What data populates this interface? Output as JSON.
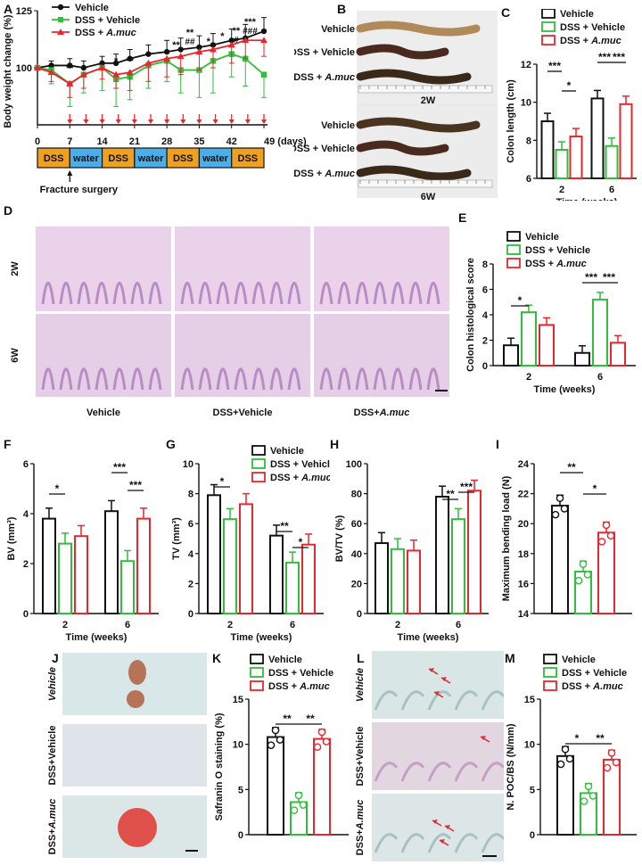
{
  "panels": {
    "A": "A",
    "B": "B",
    "C": "C",
    "D": "D",
    "E": "E",
    "F": "F",
    "G": "G",
    "H": "H",
    "I": "I",
    "J": "J",
    "K": "K",
    "L": "L",
    "M": "M"
  },
  "legend3": [
    "Vehicle",
    "DSS + Vehicle",
    "DSS + "
  ],
  "legend_italic": "A.muc",
  "colors": {
    "vehicle": "#111111",
    "dss": "#2fbf3a",
    "amuc": "#e8262e",
    "dss_bar": "#f0a020",
    "water_bar": "#4aaee8",
    "arrow": "#e8262e"
  },
  "panel_a": {
    "ylabel": "Body weight change (%)",
    "xticks": [
      "0",
      "7",
      "14",
      "21",
      "28",
      "35",
      "42",
      "49 (days)"
    ],
    "yticks": [
      "100",
      "125"
    ],
    "fracture": "Fracture surgery",
    "timeline": [
      "DSS",
      "water",
      "DSS",
      "water",
      "DSS",
      "water",
      "DSS"
    ],
    "stars": [
      {
        "x": 7,
        "t": "**"
      },
      {
        "x": 17,
        "t": "*"
      },
      {
        "x": 20,
        "t": "**"
      },
      {
        "x": 30,
        "t": "**"
      },
      {
        "x": 33,
        "t": "**"
      },
      {
        "x": 33,
        "t2": "##"
      },
      {
        "x": 37,
        "t": "*"
      },
      {
        "x": 40,
        "t": "*"
      },
      {
        "x": 43,
        "t": "**"
      },
      {
        "x": 43,
        "t2": "#"
      },
      {
        "x": 46,
        "t": "***"
      },
      {
        "x": 46,
        "t2": "###"
      }
    ]
  },
  "panel_b": {
    "rows": [
      "Vehicle",
      "DSS + Vehicle",
      "DSS + "
    ],
    "italic": "A.muc",
    "w2": "2W",
    "w6": "6W"
  },
  "panel_d": {
    "rows": [
      "2W",
      "6W"
    ],
    "cols": [
      "Vehicle",
      "DSS+Vehicle",
      "DSS+"
    ],
    "italic": "A.muc"
  },
  "panel_j": {
    "rows": [
      "Vehicle",
      "DSS+Vehicle",
      "DSS+"
    ],
    "italic": "A.muc"
  },
  "panel_l": {
    "rows": [
      "Vehicle",
      "DSS+Vehicle",
      "DSS+"
    ],
    "italic": "A.muc"
  },
  "xlabel_weeks": "Time (weeks)",
  "chart_data": [
    {
      "id": "A",
      "type": "line",
      "x": [
        0,
        3,
        7,
        10,
        14,
        17,
        20,
        24,
        28,
        31,
        35,
        38,
        42,
        45,
        49
      ],
      "series": [
        {
          "name": "Vehicle",
          "values": [
            100,
            101,
            101,
            100,
            102,
            102,
            104,
            106,
            107,
            108,
            109,
            110,
            112,
            113,
            116
          ]
        },
        {
          "name": "DSS + Vehicle",
          "values": [
            100,
            99,
            93,
            97,
            100,
            95,
            96,
            101,
            103,
            99,
            99,
            103,
            106,
            104,
            97
          ]
        },
        {
          "name": "DSS + A.muc",
          "values": [
            100,
            98,
            93,
            97,
            100,
            97,
            98,
            102,
            104,
            105,
            107,
            108,
            110,
            112,
            112
          ]
        }
      ],
      "ylim": [
        75,
        125
      ]
    },
    {
      "id": "C",
      "type": "bar",
      "ylabel": "Colon length (cm)",
      "categories": [
        "2",
        "6"
      ],
      "ylim": [
        6,
        12
      ],
      "yticks": [
        "6",
        "8",
        "10",
        "12"
      ],
      "series": [
        {
          "name": "Vehicle",
          "values": [
            9.0,
            10.2
          ]
        },
        {
          "name": "DSS + Vehicle",
          "values": [
            7.5,
            7.7
          ]
        },
        {
          "name": "DSS + A.muc",
          "values": [
            8.2,
            9.9
          ]
        }
      ],
      "sig": [
        [
          0,
          0,
          1,
          "***"
        ],
        [
          0,
          1,
          2,
          "*"
        ],
        [
          1,
          0,
          1,
          "***"
        ],
        [
          1,
          1,
          2,
          "***"
        ]
      ]
    },
    {
      "id": "E",
      "type": "bar",
      "ylabel": "Colon histological score",
      "categories": [
        "2",
        "6"
      ],
      "ylim": [
        0,
        8
      ],
      "yticks": [
        "0",
        "2",
        "4",
        "6",
        "8"
      ],
      "series": [
        {
          "name": "Vehicle",
          "values": [
            1.6,
            1.0
          ]
        },
        {
          "name": "DSS + Vehicle",
          "values": [
            4.2,
            5.2
          ]
        },
        {
          "name": "DSS + A.muc",
          "values": [
            3.2,
            1.8
          ]
        }
      ],
      "sig": [
        [
          0,
          0,
          1,
          "*"
        ],
        [
          1,
          0,
          1,
          "***"
        ],
        [
          1,
          1,
          2,
          "***"
        ]
      ]
    },
    {
      "id": "F",
      "type": "bar",
      "ylabel": "BV (mm³)",
      "categories": [
        "2",
        "6"
      ],
      "ylim": [
        0,
        6
      ],
      "yticks": [
        "0",
        "2",
        "4",
        "6"
      ],
      "series": [
        {
          "name": "Vehicle",
          "values": [
            3.8,
            4.1
          ]
        },
        {
          "name": "DSS + Vehicle",
          "values": [
            2.8,
            2.1
          ]
        },
        {
          "name": "DSS + A.muc",
          "values": [
            3.1,
            3.8
          ]
        }
      ],
      "sig": [
        [
          0,
          0,
          1,
          "*"
        ],
        [
          1,
          0,
          1,
          "***"
        ],
        [
          1,
          1,
          2,
          "***"
        ]
      ]
    },
    {
      "id": "G",
      "type": "bar",
      "ylabel": "TV (mm³)",
      "categories": [
        "2",
        "6"
      ],
      "ylim": [
        0,
        10
      ],
      "yticks": [
        "0",
        "2",
        "4",
        "6",
        "8",
        "10"
      ],
      "series": [
        {
          "name": "Vehicle",
          "values": [
            7.9,
            5.2
          ]
        },
        {
          "name": "DSS + Vehicle",
          "values": [
            6.3,
            3.4
          ]
        },
        {
          "name": "DSS + A.muc",
          "values": [
            7.3,
            4.6
          ]
        }
      ],
      "sig": [
        [
          0,
          0,
          1,
          "*"
        ],
        [
          1,
          0,
          1,
          "**"
        ],
        [
          1,
          1,
          2,
          "*"
        ]
      ]
    },
    {
      "id": "H",
      "type": "bar",
      "ylabel": "BV/TV (%)",
      "categories": [
        "2",
        "6"
      ],
      "ylim": [
        0,
        100
      ],
      "yticks": [
        "0",
        "20",
        "40",
        "60",
        "80",
        "100"
      ],
      "series": [
        {
          "name": "Vehicle",
          "values": [
            47,
            78
          ]
        },
        {
          "name": "DSS + Vehicle",
          "values": [
            43,
            63
          ]
        },
        {
          "name": "DSS + A.muc",
          "values": [
            42,
            82
          ]
        }
      ],
      "sig": [
        [
          1,
          0,
          1,
          "**"
        ],
        [
          1,
          1,
          2,
          "***"
        ]
      ]
    },
    {
      "id": "I",
      "type": "bar",
      "ylabel": "Maximum bending load (N)",
      "categories": [
        ""
      ],
      "ylim": [
        14,
        24
      ],
      "yticks": [
        "14",
        "16",
        "18",
        "20",
        "22",
        "24"
      ],
      "series": [
        {
          "name": "Vehicle",
          "values": [
            21.2
          ]
        },
        {
          "name": "DSS + Vehicle",
          "values": [
            16.8
          ]
        },
        {
          "name": "DSS + A.muc",
          "values": [
            19.4
          ]
        }
      ],
      "sig": [
        [
          0,
          0,
          1,
          "**"
        ],
        [
          0,
          1,
          2,
          "*"
        ]
      ]
    },
    {
      "id": "K",
      "type": "bar",
      "ylabel": "Safranin O staining (%)",
      "categories": [
        ""
      ],
      "ylim": [
        0,
        15
      ],
      "yticks": [
        "0",
        "5",
        "10",
        "15"
      ],
      "series": [
        {
          "name": "Vehicle",
          "values": [
            10.8
          ]
        },
        {
          "name": "DSS + Vehicle",
          "values": [
            3.6
          ]
        },
        {
          "name": "DSS + A.muc",
          "values": [
            10.6
          ]
        }
      ],
      "sig": [
        [
          0,
          0,
          1,
          "**"
        ],
        [
          0,
          1,
          2,
          "**"
        ]
      ]
    },
    {
      "id": "M",
      "type": "bar",
      "ylabel": "N. POC/BS (N/mm)",
      "categories": [
        ""
      ],
      "ylim": [
        0,
        15
      ],
      "yticks": [
        "0",
        "5",
        "10",
        "15"
      ],
      "series": [
        {
          "name": "Vehicle",
          "values": [
            8.7
          ]
        },
        {
          "name": "DSS + Vehicle",
          "values": [
            4.6
          ]
        },
        {
          "name": "DSS + A.muc",
          "values": [
            8.3
          ]
        }
      ],
      "sig": [
        [
          0,
          0,
          1,
          "*"
        ],
        [
          0,
          1,
          2,
          "**"
        ]
      ]
    }
  ]
}
